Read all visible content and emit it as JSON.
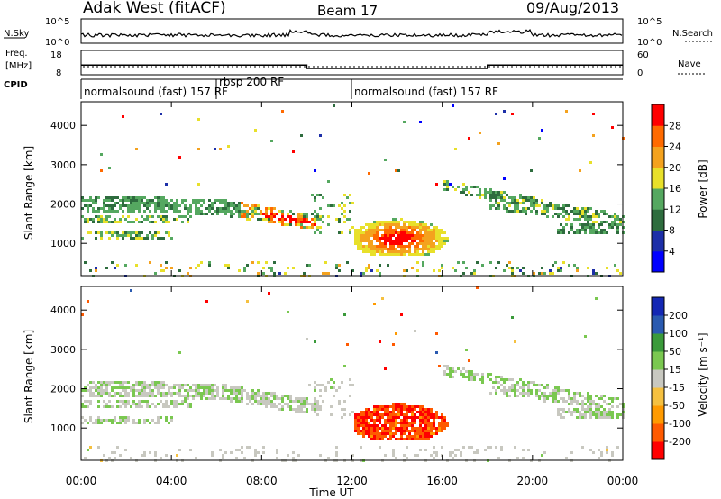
{
  "header": {
    "station": "Adak West (fitACF)",
    "beam": "Beam 17",
    "date": "09/Aug/2013"
  },
  "top_panels": {
    "nsky_label": "N.Sky",
    "nsky_ticks": [
      "10^5",
      "10^0"
    ],
    "nsearch_label": "N.Search",
    "nsearch_ticks": [
      "10^5",
      "10^0"
    ],
    "freq_label_1": "Freq.",
    "freq_label_2": "[MHz]",
    "freq_ticks": [
      "18",
      "8"
    ],
    "nave_label": "Nave",
    "nave_ticks": [
      "60",
      "0"
    ],
    "cpid_label": "CPID",
    "cpid_segments": [
      {
        "label": "normalsound (fast) 157 RF",
        "start": 0,
        "end": 6
      },
      {
        "label": "rbsp 200 RF",
        "start": 6,
        "end": 12
      },
      {
        "label": "normalsound (fast) 157 RF",
        "start": 12,
        "end": 24
      }
    ],
    "freq_steps": [
      {
        "start": 0,
        "end": 10,
        "mhz": 12.0
      },
      {
        "start": 10,
        "end": 18,
        "mhz": 10.6
      },
      {
        "start": 18,
        "end": 24,
        "mhz": 12.0
      }
    ]
  },
  "chart_data": {
    "type": "heatmap",
    "xlabel": "Time UT",
    "x_ticks": [
      "00:00",
      "04:00",
      "08:00",
      "12:00",
      "16:00",
      "20:00",
      "00:00"
    ],
    "xlim_hours": [
      0,
      24
    ],
    "panels": [
      {
        "name": "power",
        "ylabel": "Slant Range [km]",
        "ylim": [
          180,
          4600
        ],
        "y_ticks": [
          "1000",
          "2000",
          "3000",
          "4000"
        ],
        "colorbar_label": "Power [dB]",
        "colorbar_ticks": [
          "4",
          "8",
          "12",
          "16",
          "20",
          "24",
          "28"
        ],
        "colors": [
          "#0000ff",
          "#1d2fa8",
          "#2e6c3e",
          "#55a860",
          "#e8e02a",
          "#f4a21e",
          "#ff6a00",
          "#ff0000"
        ]
      },
      {
        "name": "velocity",
        "ylabel": "Slant Range [km]",
        "ylim": [
          180,
          4600
        ],
        "y_ticks": [
          "1000",
          "2000",
          "3000",
          "4000"
        ],
        "colorbar_label": "Velocity [m s⁻¹]",
        "colorbar_ticks": [
          "-200",
          "-100",
          "-50",
          "-15",
          "15",
          "50",
          "100",
          "200"
        ],
        "colors": [
          "#ff0000",
          "#ff5a00",
          "#ff9a00",
          "#f5c040",
          "#c8c8c0",
          "#7ac850",
          "#3a9a3a",
          "#2a5ab0",
          "#1428b4"
        ]
      }
    ]
  }
}
